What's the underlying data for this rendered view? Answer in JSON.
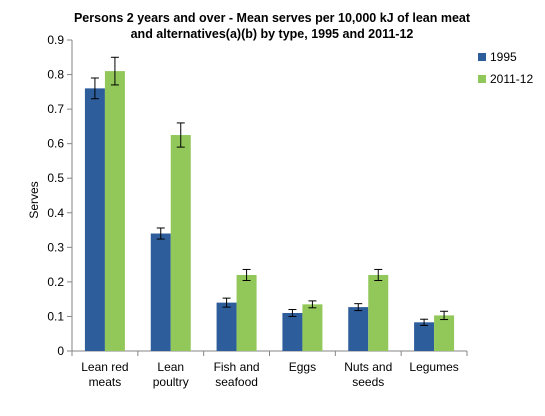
{
  "chart_data": {
    "type": "bar",
    "title_lines": [
      "Persons  2 years and over - Mean serves  per 10,000 kJ of lean meat",
      "and alternatives(a)(b)  by type, 1995 and 2011-12"
    ],
    "xlabel": "",
    "ylabel": "Serves",
    "ylim": [
      0,
      0.9
    ],
    "yticks": [
      "0",
      "0.1",
      "0.2",
      "0.3",
      "0.4",
      "0.5",
      "0.6",
      "0.7",
      "0.8",
      "0.9"
    ],
    "categories": [
      [
        "Lean red",
        "meats"
      ],
      [
        "Lean",
        "poultry"
      ],
      [
        "Fish and",
        "seafood"
      ],
      [
        "Eggs"
      ],
      [
        "Nuts and",
        "seeds"
      ],
      [
        "Legumes"
      ]
    ],
    "series": [
      {
        "name": "1995",
        "color": "#2E5D9B",
        "values": [
          0.76,
          0.34,
          0.14,
          0.11,
          0.127,
          0.083
        ],
        "error": [
          0.03,
          0.016,
          0.013,
          0.01,
          0.01,
          0.009
        ]
      },
      {
        "name": "2011-12",
        "color": "#92C85A",
        "values": [
          0.81,
          0.625,
          0.22,
          0.135,
          0.22,
          0.103
        ],
        "error": [
          0.04,
          0.035,
          0.016,
          0.01,
          0.016,
          0.012
        ]
      }
    ],
    "grid": false,
    "legend_position": "right"
  }
}
